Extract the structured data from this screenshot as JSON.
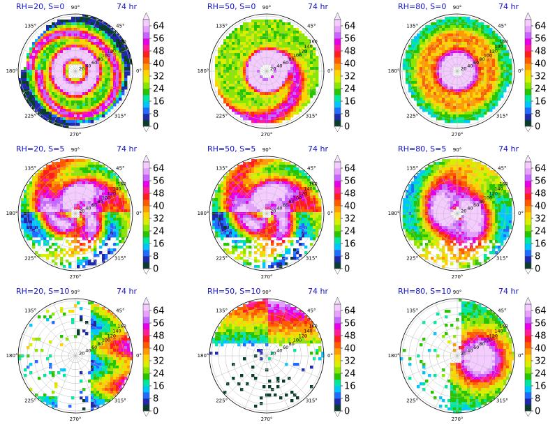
{
  "chart_data": {
    "type": "polar-filled-contour",
    "colorbar": {
      "ticks": [
        "0",
        "8",
        "16",
        "24",
        "32",
        "40",
        "48",
        "56",
        "64"
      ],
      "colors": [
        "#0a3d2e",
        "#1e2aa8",
        "#1f6cff",
        "#00c6ff",
        "#00e8a0",
        "#27c400",
        "#8be600",
        "#d8f000",
        "#ffd400",
        "#ff9a00",
        "#ff5a00",
        "#ff1e1e",
        "#ff1e96",
        "#e600e6",
        "#c864ff",
        "#e6a0ff",
        "#f5ccff"
      ],
      "range": [
        0,
        68
      ]
    },
    "angle_labels": [
      "0°",
      "45°",
      "90°",
      "135°",
      "180°",
      "225°",
      "270°",
      "315°"
    ],
    "radius_ticks": [
      "20",
      "40",
      "60",
      "80",
      "100",
      "120",
      "140",
      "160"
    ],
    "panels": [
      {
        "label": "RH=20, S=0",
        "time": "74 hr",
        "pattern": "ring"
      },
      {
        "label": "RH=50, S=0",
        "time": "74 hr",
        "pattern": "spiral"
      },
      {
        "label": "RH=80, S=0",
        "time": "74 hr",
        "pattern": "big"
      },
      {
        "label": "RH=20, S=5",
        "time": "74 hr",
        "pattern": "shear"
      },
      {
        "label": "RH=50, S=5",
        "time": "74 hr",
        "pattern": "shear"
      },
      {
        "label": "RH=80, S=5",
        "time": "74 hr",
        "pattern": "shear-big"
      },
      {
        "label": "RH=20, S=10",
        "time": "74 hr",
        "pattern": "east"
      },
      {
        "label": "RH=50, S=10",
        "time": "74 hr",
        "pattern": "north"
      },
      {
        "label": "RH=80, S=10",
        "time": "74 hr",
        "pattern": "east-big"
      }
    ]
  }
}
